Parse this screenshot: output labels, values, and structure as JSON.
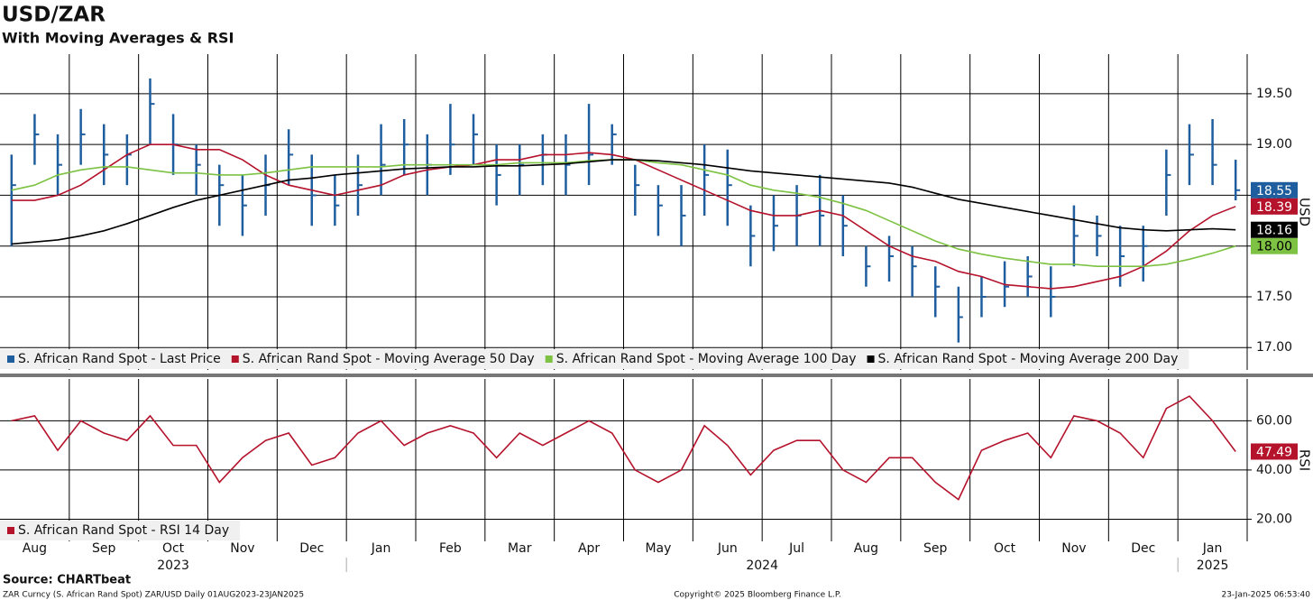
{
  "title": "USD/ZAR",
  "subtitle": "With Moving Averages & RSI",
  "chart_data": [
    {
      "type": "ohlc",
      "ylabel": "USD",
      "ylim": [
        16.78,
        19.89
      ],
      "yticks": [
        {
          "value": 17,
          "label": "17.00"
        },
        {
          "value": 17.5,
          "label": "17.50"
        },
        {
          "value": 18,
          "label": "18.00"
        },
        {
          "value": 18.5,
          "label": "18.50"
        },
        {
          "value": 19,
          "label": "19.00"
        },
        {
          "value": 19.5,
          "label": "19.50"
        }
      ],
      "grid": true,
      "legend": "bottom-left",
      "series": [
        {
          "name": "S. African Rand Spot - Last Price",
          "color": "#1f5e9e",
          "values": [
            18.6,
            19.1,
            18.8,
            19.1,
            18.9,
            18.9,
            19.4,
            19.0,
            18.8,
            18.6,
            18.4,
            18.6,
            18.9,
            18.5,
            18.4,
            18.6,
            18.8,
            19.0,
            18.8,
            19.0,
            19.1,
            18.7,
            18.8,
            18.9,
            18.8,
            18.9,
            19.1,
            18.6,
            18.4,
            18.3,
            18.7,
            18.6,
            18.1,
            18.2,
            18.3,
            18.3,
            18.2,
            17.8,
            17.9,
            17.8,
            17.6,
            17.3,
            17.5,
            17.6,
            17.7,
            17.5,
            18.1,
            18.1,
            17.9,
            18.0,
            18.7,
            18.9,
            18.8,
            18.55
          ],
          "high": [
            18.9,
            19.3,
            19.1,
            19.35,
            19.2,
            19.1,
            19.65,
            19.3,
            19.0,
            18.8,
            18.7,
            18.9,
            19.15,
            18.9,
            18.7,
            18.9,
            19.2,
            19.25,
            19.1,
            19.4,
            19.3,
            19.0,
            19.0,
            19.1,
            19.1,
            19.4,
            19.2,
            18.8,
            18.6,
            18.6,
            19.0,
            18.95,
            18.4,
            18.5,
            18.6,
            18.7,
            18.5,
            18.0,
            18.1,
            18.0,
            17.8,
            17.6,
            17.7,
            17.85,
            17.9,
            17.8,
            18.4,
            18.3,
            18.2,
            18.2,
            18.95,
            19.2,
            19.25,
            18.85
          ],
          "low": [
            18.0,
            18.8,
            18.5,
            18.8,
            18.6,
            18.6,
            19.0,
            18.7,
            18.5,
            18.2,
            18.1,
            18.3,
            18.6,
            18.2,
            18.2,
            18.3,
            18.5,
            18.7,
            18.5,
            18.7,
            18.8,
            18.4,
            18.5,
            18.6,
            18.5,
            18.6,
            18.8,
            18.3,
            18.1,
            18.0,
            18.3,
            18.2,
            17.8,
            17.95,
            18.0,
            18.0,
            17.9,
            17.6,
            17.65,
            17.5,
            17.3,
            17.05,
            17.3,
            17.4,
            17.5,
            17.3,
            17.8,
            17.9,
            17.6,
            17.65,
            18.3,
            18.6,
            18.6,
            18.45
          ],
          "last": {
            "value": 18.55,
            "label": "18.55"
          }
        },
        {
          "name": "S. African Rand Spot - Moving Average 50 Day",
          "color": "#b5122b",
          "values": [
            18.45,
            18.45,
            18.5,
            18.6,
            18.75,
            18.9,
            19.0,
            19.0,
            18.95,
            18.95,
            18.85,
            18.7,
            18.6,
            18.55,
            18.5,
            18.55,
            18.6,
            18.7,
            18.75,
            18.78,
            18.8,
            18.85,
            18.85,
            18.9,
            18.9,
            18.92,
            18.9,
            18.85,
            18.75,
            18.65,
            18.55,
            18.45,
            18.35,
            18.3,
            18.3,
            18.35,
            18.3,
            18.15,
            18.0,
            17.9,
            17.85,
            17.75,
            17.7,
            17.62,
            17.6,
            17.58,
            17.6,
            17.65,
            17.7,
            17.8,
            17.95,
            18.15,
            18.3,
            18.39
          ],
          "last": {
            "value": 18.39,
            "label": "18.39"
          }
        },
        {
          "name": "S. African Rand Spot - Moving Average 100 Day",
          "color": "#7dc242",
          "values": [
            18.55,
            18.6,
            18.7,
            18.75,
            18.78,
            18.78,
            18.75,
            18.72,
            18.72,
            18.7,
            18.7,
            18.72,
            18.75,
            18.78,
            18.78,
            18.78,
            18.78,
            18.8,
            18.8,
            18.8,
            18.8,
            18.8,
            18.82,
            18.82,
            18.82,
            18.84,
            18.85,
            18.85,
            18.82,
            18.8,
            18.75,
            18.7,
            18.6,
            18.55,
            18.52,
            18.48,
            18.42,
            18.35,
            18.25,
            18.15,
            18.05,
            17.97,
            17.92,
            17.88,
            17.85,
            17.82,
            17.82,
            17.8,
            17.8,
            17.8,
            17.82,
            17.87,
            17.93,
            18.0
          ],
          "last": {
            "value": 18.0,
            "label": "18.00"
          }
        },
        {
          "name": "S. African Rand Spot - Moving Average 200 Day",
          "color": "#000000",
          "values": [
            18.02,
            18.04,
            18.06,
            18.1,
            18.15,
            18.22,
            18.3,
            18.38,
            18.45,
            18.5,
            18.55,
            18.6,
            18.65,
            18.67,
            18.7,
            18.72,
            18.74,
            18.76,
            18.77,
            18.78,
            18.78,
            18.79,
            18.79,
            18.8,
            18.81,
            18.83,
            18.85,
            18.85,
            18.84,
            18.82,
            18.8,
            18.77,
            18.74,
            18.72,
            18.7,
            18.68,
            18.66,
            18.64,
            18.62,
            18.58,
            18.52,
            18.46,
            18.42,
            18.38,
            18.34,
            18.3,
            18.26,
            18.22,
            18.18,
            18.16,
            18.15,
            18.16,
            18.17,
            18.16
          ],
          "last": {
            "value": 18.16,
            "label": "18.16"
          }
        }
      ]
    },
    {
      "type": "line",
      "ylabel": "RSI",
      "ylim": [
        11,
        77
      ],
      "yticks": [
        {
          "value": 20,
          "label": "20.00"
        },
        {
          "value": 40,
          "label": "40.00"
        },
        {
          "value": 60,
          "label": "60.00"
        }
      ],
      "grid": true,
      "legend": "bottom-left",
      "categories": [
        null,
        "Aug",
        null,
        null,
        "Sep",
        null,
        null,
        "Oct",
        null,
        null,
        "Nov",
        null,
        null,
        "Dec",
        null,
        null,
        "Jan",
        null,
        null,
        "Feb",
        null,
        null,
        "Mar",
        null,
        null,
        "Apr",
        null,
        null,
        "May",
        null,
        null,
        "Jun",
        null,
        null,
        "Jul",
        null,
        null,
        "Aug",
        null,
        null,
        "Sep",
        null,
        null,
        "Oct",
        null,
        null,
        "Nov",
        null,
        null,
        "Dec",
        null,
        null,
        "Jan",
        null
      ],
      "years": [
        "2023",
        "2024",
        "2025"
      ],
      "series": [
        {
          "name": "S. African Rand Spot - RSI 14 Day",
          "color": "#b5122b",
          "values": [
            60,
            62,
            48,
            60,
            55,
            52,
            62,
            50,
            50,
            35,
            45,
            52,
            55,
            42,
            45,
            55,
            60,
            50,
            55,
            58,
            55,
            45,
            55,
            50,
            55,
            60,
            55,
            40,
            35,
            40,
            58,
            50,
            38,
            48,
            52,
            52,
            40,
            35,
            45,
            45,
            35,
            28,
            48,
            52,
            55,
            45,
            62,
            60,
            55,
            45,
            65,
            70,
            60,
            47.49
          ],
          "last": {
            "value": 47.49,
            "label": "47.49"
          }
        }
      ]
    }
  ],
  "footer": {
    "source": "Source: CHARTbeat",
    "left": "ZAR Curncy (S. African Rand Spot) ZAR/USD  Daily 01AUG2023-23JAN2025",
    "center": "Copyright© 2025 Bloomberg Finance L.P.",
    "right": "23-Jan-2025 06:53:40"
  }
}
